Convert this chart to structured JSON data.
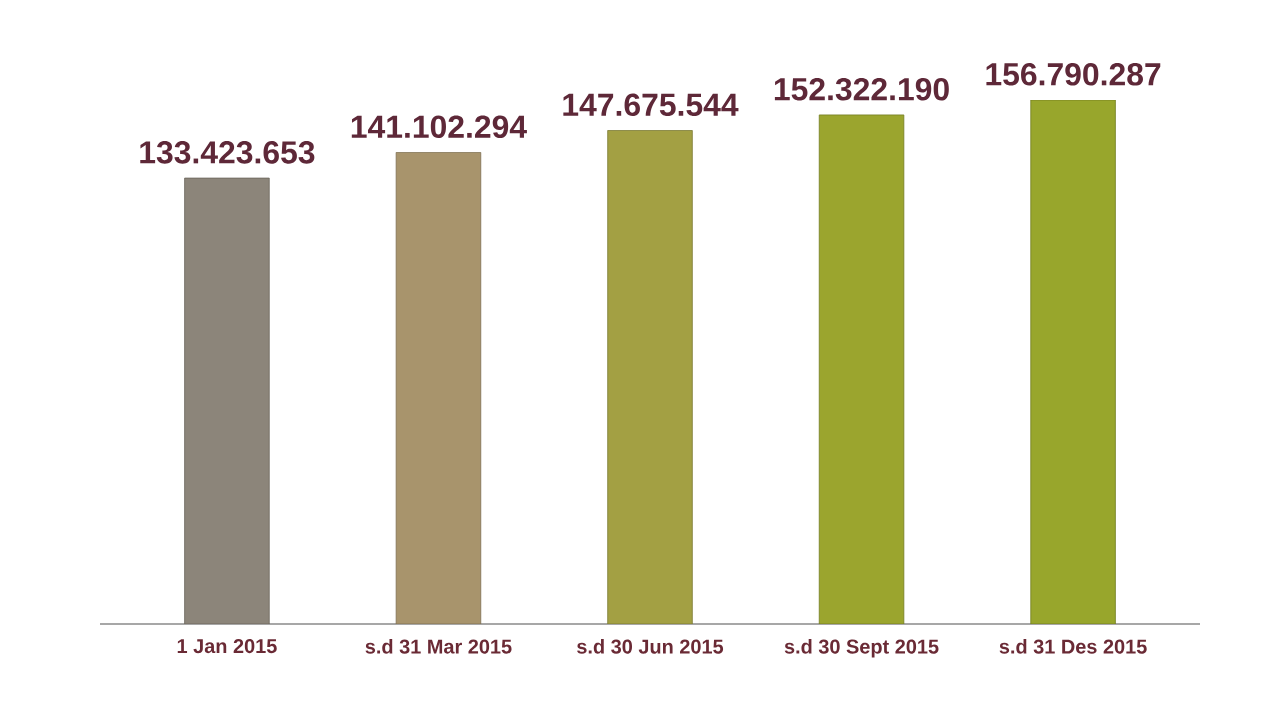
{
  "chart_data": {
    "type": "bar",
    "categories": [
      "1 Jan 2015",
      "s.d 31 Mar 2015",
      "s.d 30 Jun 2015",
      "s.d 30 Sept 2015",
      "s.d 31 Des 2015"
    ],
    "values": [
      133423653,
      141102294,
      147675544,
      152322190,
      156790287
    ],
    "value_labels": [
      "133.423.653",
      "141.102.294",
      "147.675.544",
      "152.322.190",
      "156.790.287"
    ],
    "colors": [
      "#8c857a",
      "#a8946c",
      "#a3a043",
      "#9ba52e",
      "#98a62c"
    ],
    "tick_labels": "x"
  }
}
